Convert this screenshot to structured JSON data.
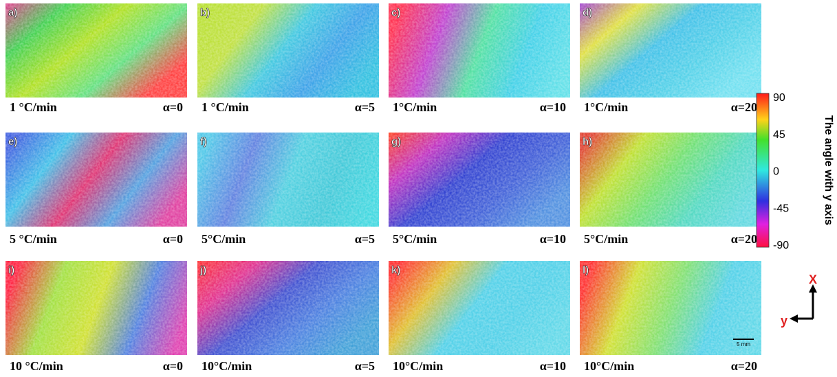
{
  "panels": [
    {
      "label": "a)",
      "rate": "1 °C/min",
      "alpha": "α=0"
    },
    {
      "label": "b)",
      "rate": "1 °C/min",
      "alpha": "α=5"
    },
    {
      "label": "c)",
      "rate": "1°C/min",
      "alpha": "α=10"
    },
    {
      "label": "d)",
      "rate": "1°C/min",
      "alpha": "α=20"
    },
    {
      "label": "e)",
      "rate": "5 °C/min",
      "alpha": "α=0"
    },
    {
      "label": "f)",
      "rate": "5°C/min",
      "alpha": "α=5"
    },
    {
      "label": "g)",
      "rate": "5°C/min",
      "alpha": "α=10"
    },
    {
      "label": "h)",
      "rate": "5°C/min",
      "alpha": "α=20"
    },
    {
      "label": "i)",
      "rate": "10 °C/min",
      "alpha": "α=0"
    },
    {
      "label": "j)",
      "rate": "10°C/min",
      "alpha": "α=5"
    },
    {
      "label": "k)",
      "rate": "10°C/min",
      "alpha": "α=10"
    },
    {
      "label": "l)",
      "rate": "10°C/min",
      "alpha": "α=20"
    }
  ],
  "colorbar": {
    "title": "The angle with y axis",
    "ticks": [
      90,
      45,
      0,
      -45,
      -90
    ]
  },
  "axes": {
    "x": "X",
    "y": "y"
  },
  "scale_bar": "5 mm"
}
